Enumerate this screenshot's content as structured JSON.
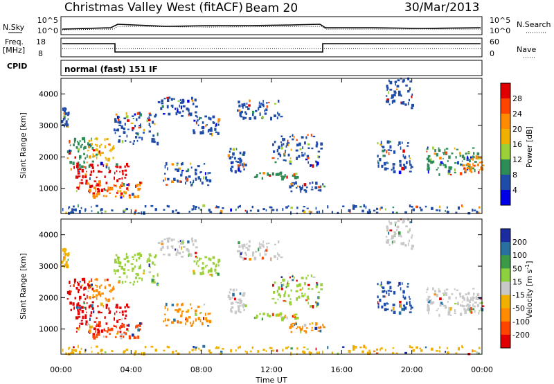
{
  "header": {
    "radar": "Christmas Valley West (fitACF)",
    "beam": "Beam 20",
    "date": "30/Mar/2013"
  },
  "top_panels": {
    "nsky_label": "N.Sky",
    "nsky_ticks": [
      "10^5",
      "10^0"
    ],
    "nsearch_label": "N.Search",
    "nsearch_ticks": [
      "10^5",
      "10^0"
    ],
    "freq_label": "Freq.",
    "freq_unit": "[MHz]",
    "freq_ticks": [
      "18",
      "8"
    ],
    "nave_label": "Nave",
    "nave_ticks": [
      "60",
      "0"
    ],
    "cpid_label": "CPID",
    "cpid_value": "normal (fast) 151 IF"
  },
  "chart_data": [
    {
      "type": "heatmap",
      "name": "power",
      "ylabel": "Slant Range [km]",
      "ylim": [
        200,
        4500
      ],
      "y_ticks": [
        "4000",
        "3000",
        "2000",
        "1000"
      ],
      "x_ticks": [
        "00:00",
        "04:00",
        "08:00",
        "12:00",
        "16:00",
        "20:00",
        "00:00"
      ],
      "xlim_hours": [
        0,
        24
      ],
      "colorbar_label": "Power [dB]",
      "colorbar_ticks": [
        "28",
        "24",
        "20",
        "16",
        "12",
        "8",
        "4"
      ],
      "colorbar_colors": [
        "#e00000",
        "#ff4400",
        "#ff8c00",
        "#f0b000",
        "#9ad038",
        "#2e8c57",
        "#1e4ca8",
        "#0000e6"
      ]
    },
    {
      "type": "heatmap",
      "name": "velocity",
      "ylabel": "Slant Range [km]",
      "ylim": [
        200,
        4500
      ],
      "y_ticks": [
        "4000",
        "3000",
        "2000",
        "1000"
      ],
      "x_ticks": [
        "00:00",
        "04:00",
        "08:00",
        "12:00",
        "16:00",
        "20:00",
        "00:00"
      ],
      "xlim_hours": [
        0,
        24
      ],
      "xlabel": "Time UT",
      "colorbar_label": "Velocity [m s",
      "colorbar_label_sup": "-1",
      "colorbar_label_end": "]",
      "colorbar_ticks": [
        "200",
        "100",
        "50",
        "15",
        "-15",
        "-50",
        "-100",
        "-200"
      ],
      "colorbar_colors": [
        "#1a2ca0",
        "#2870a0",
        "#3a9a48",
        "#8cd040",
        "#c8c8c8",
        "#f0b000",
        "#ff8c00",
        "#ff4400",
        "#e00000"
      ]
    }
  ],
  "regions": [
    {
      "t0": 0.0,
      "t1": 0.4,
      "r0": 2900,
      "r1": 3600,
      "color": "#1e4ca8",
      "v": "#f0b000"
    },
    {
      "t0": 0.3,
      "t1": 1.8,
      "r0": 1600,
      "r1": 2600,
      "color": "#2e8c57",
      "v": "#e00000"
    },
    {
      "t0": 0.8,
      "t1": 3.8,
      "r0": 800,
      "r1": 1800,
      "color": "#e00000",
      "v": "#e00000"
    },
    {
      "t0": 1.2,
      "t1": 4.6,
      "r0": 700,
      "r1": 1200,
      "color": "#ff8c00",
      "v": "#ff4400"
    },
    {
      "t0": 1.5,
      "t1": 3.0,
      "r0": 1900,
      "r1": 2600,
      "color": "#f0b000",
      "v": "#ff8c00"
    },
    {
      "t0": 3.0,
      "t1": 5.6,
      "r0": 2400,
      "r1": 3400,
      "color": "#1e4ca8",
      "v": "#9ad038"
    },
    {
      "t0": 5.5,
      "t1": 7.7,
      "r0": 3300,
      "r1": 3900,
      "color": "#1e4ca8",
      "v": "#c8c8c8"
    },
    {
      "t0": 7.5,
      "t1": 9.0,
      "r0": 2700,
      "r1": 3300,
      "color": "#1e4ca8",
      "v": "#9ad038"
    },
    {
      "t0": 5.8,
      "t1": 8.5,
      "r0": 1100,
      "r1": 1800,
      "color": "#1e4ca8",
      "v": "#ff8c00"
    },
    {
      "t0": 9.5,
      "t1": 10.5,
      "r0": 1500,
      "r1": 2300,
      "color": "#1e4ca8",
      "v": "#c8c8c8"
    },
    {
      "t0": 11.0,
      "t1": 13.5,
      "r0": 1300,
      "r1": 1500,
      "color": "#2e8c57",
      "v": "#9ad038"
    },
    {
      "t0": 12.0,
      "t1": 14.8,
      "r0": 1700,
      "r1": 2700,
      "color": "#1e4ca8",
      "v": "#9ad038"
    },
    {
      "t0": 13.0,
      "t1": 15.0,
      "r0": 900,
      "r1": 1200,
      "color": "#1e4ca8",
      "v": "#ff8c00"
    },
    {
      "t0": 10.0,
      "t1": 12.5,
      "r0": 3200,
      "r1": 3800,
      "color": "#1e4ca8",
      "v": "#c8c8c8"
    },
    {
      "t0": 20.8,
      "t1": 24.0,
      "r0": 1400,
      "r1": 2300,
      "color": "#2e8c57",
      "v": "#c8c8c8"
    },
    {
      "t0": 22.8,
      "t1": 24.0,
      "r0": 1500,
      "r1": 2000,
      "color": "#ff8c00",
      "v": "#c8c8c8"
    },
    {
      "t0": 18.5,
      "t1": 20.0,
      "r0": 3500,
      "r1": 4500,
      "color": "#1e4ca8",
      "v": "#c8c8c8"
    },
    {
      "t0": 18.0,
      "t1": 20.0,
      "r0": 1500,
      "r1": 2500,
      "color": "#1e4ca8",
      "v": "#1e4ca8"
    },
    {
      "t0": 0.0,
      "t1": 24.0,
      "r0": 200,
      "r1": 450,
      "color": "#1e4ca8",
      "v": "#f0b000"
    }
  ]
}
